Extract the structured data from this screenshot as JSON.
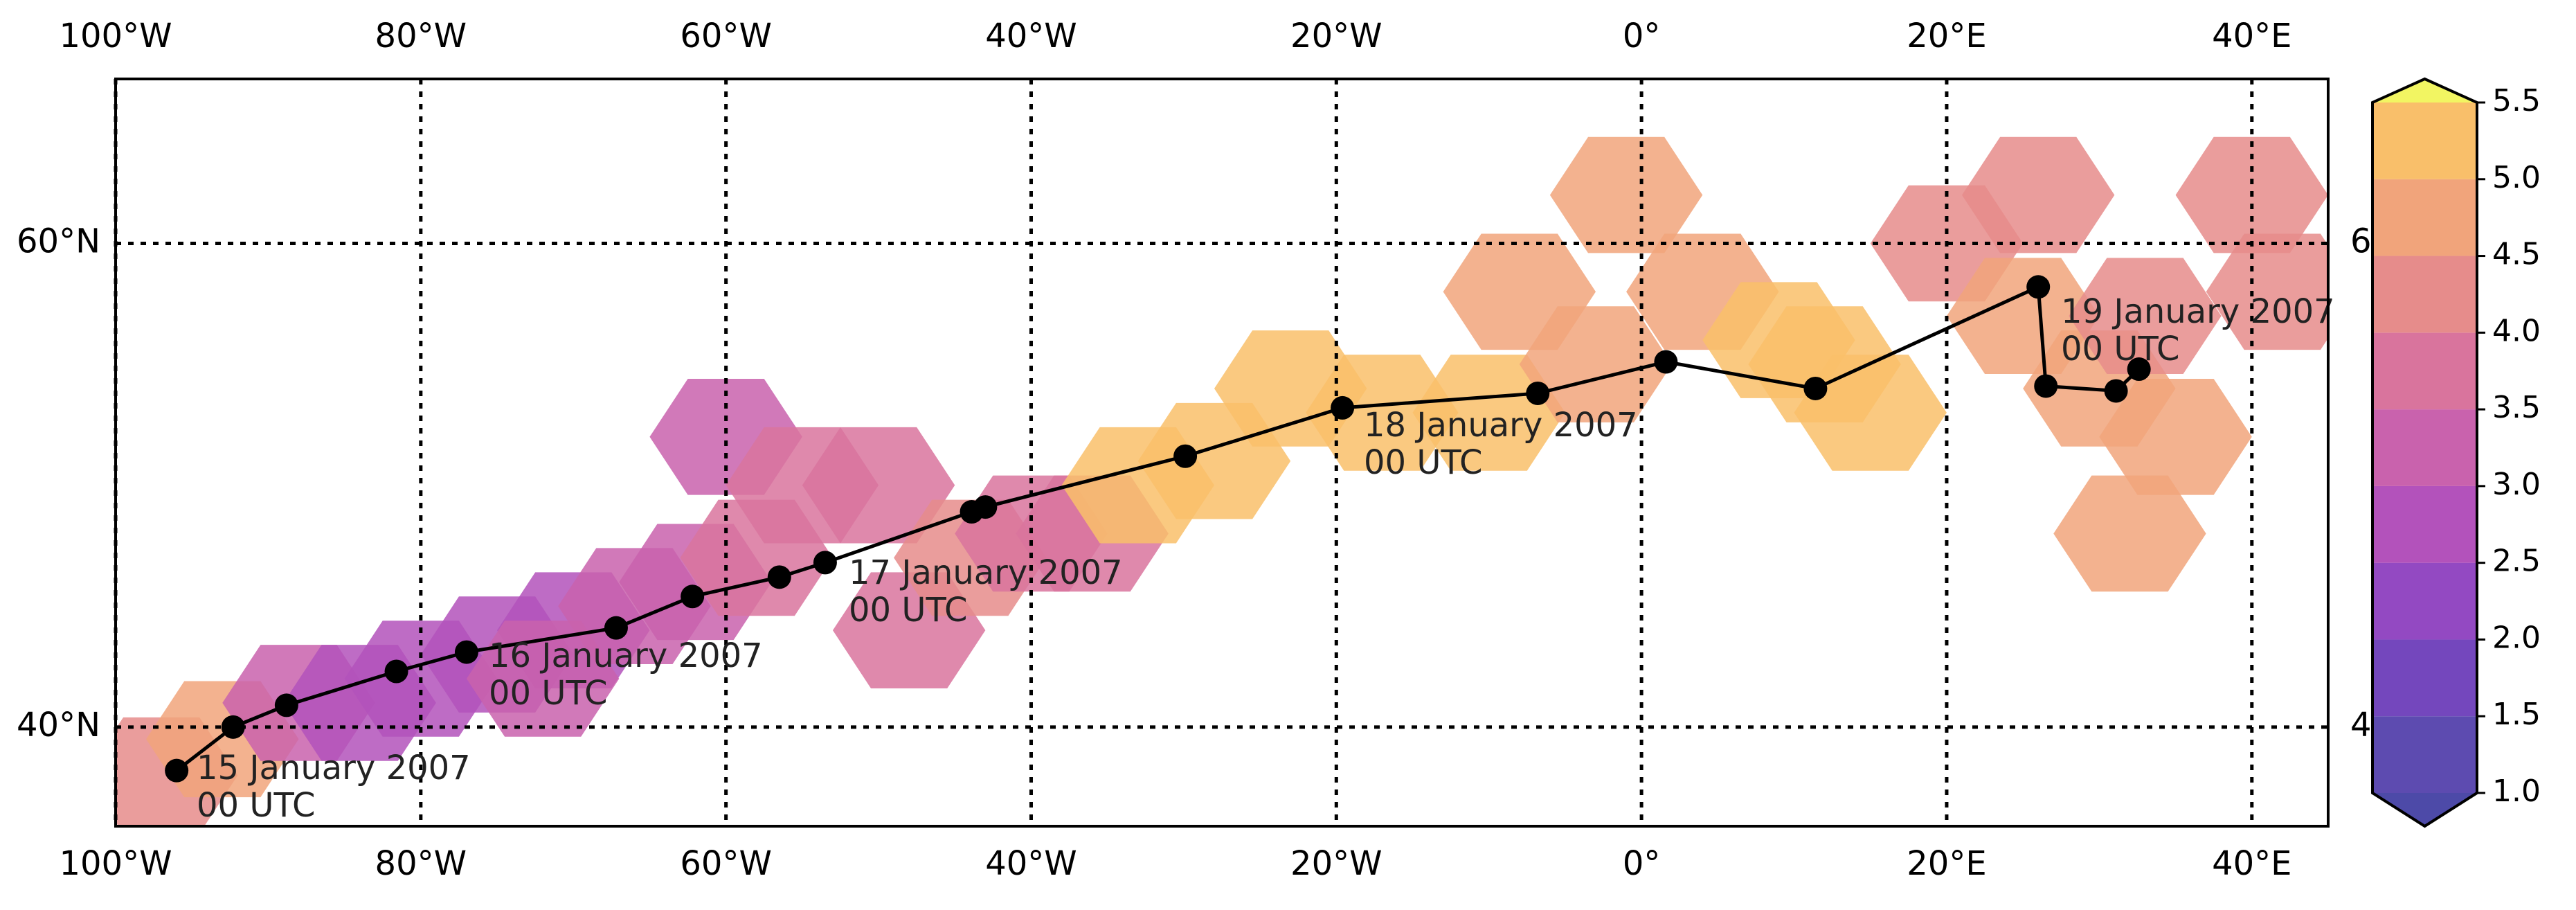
{
  "chart_data": {
    "type": "map",
    "xlim": [
      -100,
      45
    ],
    "ylim": [
      35.9,
      66.8
    ],
    "xticks": [
      {
        "value": -100,
        "label": "100°W"
      },
      {
        "value": -80,
        "label": "80°W"
      },
      {
        "value": -60,
        "label": "60°W"
      },
      {
        "value": -40,
        "label": "40°W"
      },
      {
        "value": -20,
        "label": "20°W"
      },
      {
        "value": 0,
        "label": "0°"
      },
      {
        "value": 20,
        "label": "20°E"
      },
      {
        "value": 40,
        "label": "40°E"
      }
    ],
    "yticks": [
      {
        "value": 40,
        "label": "40°N"
      },
      {
        "value": 60,
        "label": "60°N"
      }
    ],
    "grid": true,
    "track": {
      "color": "#000000",
      "lon": [
        -96.0,
        -92.3,
        -88.8,
        -81.6,
        -77.0,
        -67.2,
        -62.2,
        -56.5,
        -53.5,
        -43.9,
        -43.0,
        -29.9,
        -19.6,
        -6.8,
        1.6,
        11.4,
        26.0,
        26.5,
        31.1,
        32.6
      ],
      "lat": [
        38.2,
        40.0,
        40.9,
        42.3,
        43.1,
        44.1,
        45.4,
        46.2,
        46.8,
        48.9,
        49.1,
        51.2,
        53.2,
        53.8,
        55.1,
        54.0,
        58.2,
        54.1,
        53.9,
        54.8
      ]
    },
    "annotations": [
      {
        "lines": [
          "15 January 2007",
          "00 UTC"
        ]
      },
      {
        "lines": [
          "16 January 2007",
          "00 UTC"
        ]
      },
      {
        "lines": [
          "17 January 2007",
          "00 UTC"
        ]
      },
      {
        "lines": [
          "18 January 2007",
          "00 UTC"
        ]
      },
      {
        "lines": [
          "19 January 2007",
          "00 UTC"
        ]
      }
    ],
    "cells": [
      {
        "lon": -97,
        "lat": 38,
        "value": 4.3
      },
      {
        "lon": -93,
        "lat": 39.5,
        "value": 4.6
      },
      {
        "lon": -88,
        "lat": 41,
        "value": 3.2
      },
      {
        "lon": -84,
        "lat": 41,
        "value": 3.0
      },
      {
        "lon": -80,
        "lat": 42,
        "value": 2.9
      },
      {
        "lon": -75,
        "lat": 43,
        "value": 2.9
      },
      {
        "lon": -70,
        "lat": 44,
        "value": 2.9
      },
      {
        "lon": -66,
        "lat": 45,
        "value": 3.1
      },
      {
        "lon": -72,
        "lat": 42,
        "value": 3.2
      },
      {
        "lon": -62,
        "lat": 46,
        "value": 3.3
      },
      {
        "lon": -58,
        "lat": 47,
        "value": 3.6
      },
      {
        "lon": -60,
        "lat": 52,
        "value": 3.2
      },
      {
        "lon": -55,
        "lat": 50,
        "value": 3.8
      },
      {
        "lon": -50,
        "lat": 50,
        "value": 4.0
      },
      {
        "lon": -48,
        "lat": 44,
        "value": 3.8
      },
      {
        "lon": -44,
        "lat": 47,
        "value": 4.2
      },
      {
        "lon": -40,
        "lat": 48,
        "value": 4.0
      },
      {
        "lon": -36,
        "lat": 48,
        "value": 4.0
      },
      {
        "lon": -33,
        "lat": 50,
        "value": 5.3
      },
      {
        "lon": -28,
        "lat": 51,
        "value": 5.5
      },
      {
        "lon": -23,
        "lat": 54,
        "value": 5.4
      },
      {
        "lon": -17,
        "lat": 53,
        "value": 5.4
      },
      {
        "lon": -10,
        "lat": 53,
        "value": 5.1
      },
      {
        "lon": -8,
        "lat": 58,
        "value": 5.0
      },
      {
        "lon": -3,
        "lat": 55,
        "value": 5.0
      },
      {
        "lon": -1,
        "lat": 62,
        "value": 4.9
      },
      {
        "lon": 4,
        "lat": 58,
        "value": 5.0
      },
      {
        "lon": 9,
        "lat": 56,
        "value": 5.4
      },
      {
        "lon": 12,
        "lat": 55,
        "value": 5.5
      },
      {
        "lon": 15,
        "lat": 53,
        "value": 5.2
      },
      {
        "lon": 20,
        "lat": 60,
        "value": 4.1
      },
      {
        "lon": 26,
        "lat": 62,
        "value": 4.4
      },
      {
        "lon": 25,
        "lat": 57,
        "value": 4.6
      },
      {
        "lon": 30,
        "lat": 54,
        "value": 4.7
      },
      {
        "lon": 35,
        "lat": 52,
        "value": 4.7
      },
      {
        "lon": 33,
        "lat": 57,
        "value": 4.4
      },
      {
        "lon": 40,
        "lat": 62,
        "value": 4.3
      },
      {
        "lon": 32,
        "lat": 48,
        "value": 4.8
      },
      {
        "lon": 42,
        "lat": 58,
        "value": 4.2
      }
    ],
    "colorbar": {
      "ticks": [
        {
          "value": 1.0,
          "label": "1.0"
        },
        {
          "value": 1.5,
          "label": "1.5"
        },
        {
          "value": 2.0,
          "label": "2.0"
        },
        {
          "value": 2.5,
          "label": "2.5"
        },
        {
          "value": 3.0,
          "label": "3.0"
        },
        {
          "value": 3.5,
          "label": "3.5"
        },
        {
          "value": 4.0,
          "label": "4.0"
        },
        {
          "value": 4.5,
          "label": "4.5"
        },
        {
          "value": 5.0,
          "label": "5.0"
        },
        {
          "value": 5.5,
          "label": "5.5"
        }
      ],
      "colors": [
        "#5d4bb0",
        "#7447bd",
        "#9349c2",
        "#b352bb",
        "#c962ad",
        "#d9749d",
        "#e68c8b",
        "#f1a47b",
        "#f9bf6a"
      ],
      "under_color": "#4d4aa8",
      "over_color": "#f2f562"
    },
    "clipped_labels": [
      "6",
      "4"
    ]
  }
}
